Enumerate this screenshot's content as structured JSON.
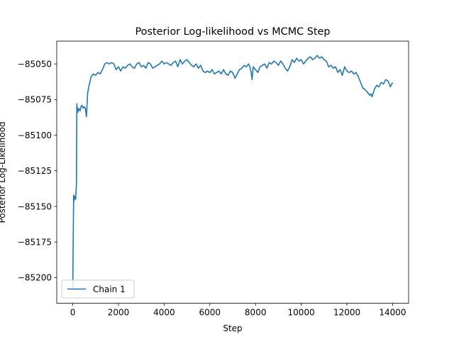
{
  "chart_data": {
    "type": "line",
    "title": "Posterior Log-likelihood vs MCMC Step",
    "xlabel": "Step",
    "ylabel": "Posterior Log-Likelihood",
    "xlim": [
      -700,
      14700
    ],
    "ylim": [
      -85218,
      -85034
    ],
    "xticks": [
      0,
      2000,
      4000,
      6000,
      8000,
      10000,
      12000,
      14000
    ],
    "yticks": [
      -85200,
      -85175,
      -85150,
      -85125,
      -85100,
      -85075,
      -85050
    ],
    "grid": false,
    "legend_position": "lower-left",
    "series": [
      {
        "name": "Chain 1",
        "color": "#1f77b4",
        "x": [
          0,
          20,
          40,
          60,
          80,
          100,
          130,
          160,
          180,
          200,
          220,
          250,
          280,
          320,
          360,
          400,
          450,
          500,
          550,
          600,
          650,
          700,
          750,
          800,
          900,
          1000,
          1100,
          1200,
          1300,
          1400,
          1500,
          1600,
          1700,
          1800,
          1900,
          2000,
          2100,
          2200,
          2300,
          2400,
          2500,
          2600,
          2700,
          2800,
          2900,
          3000,
          3100,
          3200,
          3300,
          3400,
          3500,
          3600,
          3700,
          3800,
          3900,
          4000,
          4100,
          4200,
          4300,
          4400,
          4500,
          4600,
          4700,
          4800,
          4900,
          5000,
          5100,
          5200,
          5300,
          5400,
          5500,
          5600,
          5700,
          5800,
          5900,
          6000,
          6100,
          6200,
          6300,
          6400,
          6500,
          6600,
          6700,
          6800,
          6900,
          7000,
          7100,
          7200,
          7300,
          7400,
          7500,
          7600,
          7700,
          7750,
          7800,
          7850,
          7900,
          8000,
          8100,
          8200,
          8300,
          8400,
          8500,
          8600,
          8700,
          8800,
          8900,
          9000,
          9100,
          9200,
          9300,
          9400,
          9500,
          9600,
          9700,
          9800,
          9900,
          10000,
          10100,
          10200,
          10300,
          10400,
          10500,
          10600,
          10700,
          10800,
          10900,
          11000,
          11100,
          11200,
          11300,
          11400,
          11500,
          11600,
          11700,
          11800,
          11900,
          12000,
          12100,
          12200,
          12300,
          12400,
          12500,
          12600,
          12700,
          12800,
          12900,
          13000,
          13050,
          13100,
          13200,
          13300,
          13400,
          13500,
          13600,
          13700,
          13800,
          13900,
          14000
        ],
        "values": [
          -85208,
          -85175,
          -85142,
          -85146,
          -85143,
          -85144,
          -85145,
          -85135,
          -85078,
          -85083,
          -85084,
          -85081,
          -85082,
          -85083,
          -85080,
          -85079,
          -85081,
          -85080,
          -85081,
          -85087,
          -85071,
          -85066,
          -85063,
          -85059,
          -85057,
          -85058,
          -85056,
          -85057,
          -85054,
          -85050,
          -85049,
          -85050,
          -85049,
          -85050,
          -85054,
          -85052,
          -85055,
          -85052,
          -85053,
          -85051,
          -85050,
          -85052,
          -85053,
          -85050,
          -85049,
          -85052,
          -85051,
          -85053,
          -85049,
          -85050,
          -85053,
          -85052,
          -85051,
          -85050,
          -85048,
          -85050,
          -85049,
          -85050,
          -85051,
          -85049,
          -85048,
          -85052,
          -85047,
          -85050,
          -85048,
          -85047,
          -85049,
          -85051,
          -85052,
          -85050,
          -85053,
          -85051,
          -85055,
          -85056,
          -85055,
          -85056,
          -85054,
          -85057,
          -85056,
          -85055,
          -85057,
          -85054,
          -85057,
          -85058,
          -85055,
          -85056,
          -85060,
          -85057,
          -85054,
          -85053,
          -85051,
          -85052,
          -85050,
          -85052,
          -85055,
          -85061,
          -85052,
          -85054,
          -85056,
          -85052,
          -85051,
          -85050,
          -85053,
          -85049,
          -85050,
          -85048,
          -85049,
          -85051,
          -85048,
          -85050,
          -85053,
          -85055,
          -85052,
          -85047,
          -85049,
          -85046,
          -85048,
          -85047,
          -85050,
          -85048,
          -85046,
          -85045,
          -85047,
          -85046,
          -85044,
          -85046,
          -85045,
          -85047,
          -85048,
          -85052,
          -85051,
          -85053,
          -85052,
          -85056,
          -85054,
          -85058,
          -85052,
          -85055,
          -85056,
          -85055,
          -85057,
          -85056,
          -85059,
          -85063,
          -85067,
          -85068,
          -85070,
          -85072,
          -85071,
          -85073,
          -85068,
          -85065,
          -85066,
          -85063,
          -85064,
          -85061,
          -85062,
          -85066,
          -85063
        ]
      }
    ]
  }
}
